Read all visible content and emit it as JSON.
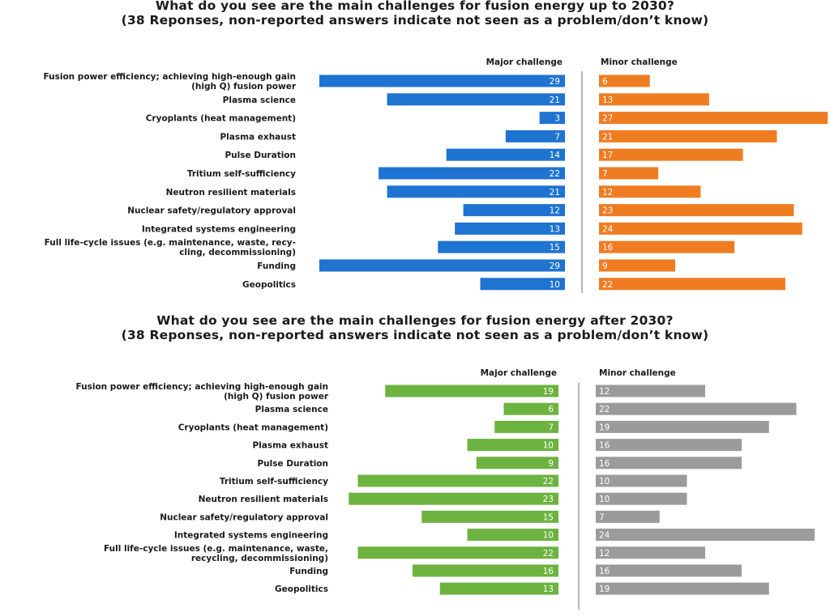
{
  "chart_data": [
    {
      "type": "bar",
      "title": "What do you see are the main challenges for fusion energy up to 2030?",
      "subtitle": "(38 Reponses, non-reported answers indicate not seen as a problem/don’t know)",
      "categories": [
        [
          "Fusion power efficiency; achieving high-enough gain",
          "(high Q) fusion power"
        ],
        [
          "Plasma science"
        ],
        [
          "Cryoplants (heat management)"
        ],
        [
          "Plasma exhaust"
        ],
        [
          "Pulse Duration"
        ],
        [
          "Tritium self-sufficiency"
        ],
        [
          "Neutron resilient materials"
        ],
        [
          "Nuclear safety/regulatory approval"
        ],
        [
          "Integrated systems engineering"
        ],
        [
          "Full life-cycle issues (e.g. maintenance, waste, recy-",
          "cling, decommissioning)"
        ],
        [
          "Funding"
        ],
        [
          "Geopolitics"
        ]
      ],
      "series": [
        {
          "name": "Major challenge",
          "color": "#1f73d1",
          "values": [
            29,
            21,
            3,
            7,
            14,
            22,
            21,
            12,
            13,
            15,
            29,
            10
          ]
        },
        {
          "name": "Minor challenge",
          "color": "#f07c22",
          "values": [
            6,
            13,
            27,
            21,
            17,
            7,
            12,
            23,
            24,
            16,
            9,
            22
          ]
        }
      ]
    },
    {
      "type": "bar",
      "title": "What do you see are the main challenges for fusion energy after 2030?",
      "subtitle": "(38 Reponses, non-reported answers indicate not seen as a problem/don’t know)",
      "categories": [
        [
          "Fusion power efficiency; achieving high-enough gain",
          "(high Q) fusion power"
        ],
        [
          "Plasma science"
        ],
        [
          "Cryoplants (heat management)"
        ],
        [
          "Plasma exhaust"
        ],
        [
          "Pulse Duration"
        ],
        [
          "Tritium self-sufficiency"
        ],
        [
          "Neutron resilient materials"
        ],
        [
          "Nuclear safety/regulatory approval"
        ],
        [
          "Integrated systems engineering"
        ],
        [
          "Full life-cycle issues (e.g. maintenance, waste,",
          "recycling, decommissioning)"
        ],
        [
          "Funding"
        ],
        [
          "Geopolitics"
        ]
      ],
      "series": [
        {
          "name": "Major challenge",
          "color": "#6db33f",
          "values": [
            19,
            6,
            7,
            10,
            9,
            22,
            23,
            15,
            10,
            22,
            16,
            13
          ]
        },
        {
          "name": "Minor challenge",
          "color": "#9b9b9b",
          "values": [
            12,
            22,
            19,
            16,
            16,
            10,
            10,
            7,
            24,
            12,
            16,
            19
          ]
        }
      ]
    }
  ]
}
